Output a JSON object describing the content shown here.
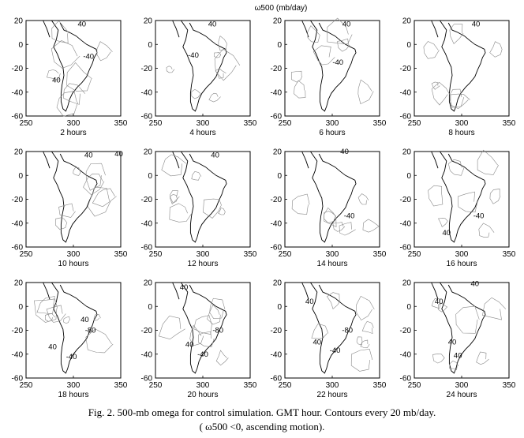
{
  "figure": {
    "title": "ω500 (mb/day)",
    "caption_line1": "Fig. 2. 500-mb omega for control simulation. GMT hour. Contours every 20 mb/day.",
    "caption_line2": "( ω500 <0, ascending motion)."
  },
  "chart_data": {
    "type": "contour",
    "variable": "ω500",
    "units": "mb/day",
    "contour_interval": 20,
    "x_ticks": [
      "250",
      "300",
      "350"
    ],
    "y_ticks": [
      "20",
      "0",
      "-20",
      "-40",
      "-60"
    ],
    "xlim": [
      250,
      350
    ],
    "ylim": [
      -60,
      20
    ],
    "panels": [
      {
        "hour": "2 hours",
        "labels": [
          {
            "text": "40",
            "x": 309,
            "y": 17
          },
          {
            "text": "-40",
            "x": 316,
            "y": -10
          },
          {
            "text": "40",
            "x": 282,
            "y": -30
          }
        ]
      },
      {
        "hour": "4 hours",
        "labels": [
          {
            "text": "40",
            "x": 310,
            "y": 17
          },
          {
            "text": "-40",
            "x": 290,
            "y": -9
          }
        ]
      },
      {
        "hour": "6 hours",
        "labels": [
          {
            "text": "40",
            "x": 315,
            "y": 17
          },
          {
            "text": "-40",
            "x": 306,
            "y": -15
          }
        ]
      },
      {
        "hour": "8 hours",
        "labels": [
          {
            "text": "40",
            "x": 315,
            "y": 17
          }
        ]
      },
      {
        "hour": "10 hours",
        "labels": [
          {
            "text": "40",
            "x": 316,
            "y": 17
          },
          {
            "text": "40",
            "x": 348,
            "y": 18
          }
        ]
      },
      {
        "hour": "12 hours",
        "labels": [
          {
            "text": "40",
            "x": 313,
            "y": 17
          }
        ]
      },
      {
        "hour": "14 hours",
        "labels": [
          {
            "text": "40",
            "x": 313,
            "y": 20
          },
          {
            "text": "-40",
            "x": 318,
            "y": -34
          }
        ]
      },
      {
        "hour": "16 hours",
        "labels": [
          {
            "text": "-40",
            "x": 318,
            "y": -34
          },
          {
            "text": "40",
            "x": 284,
            "y": -48
          }
        ]
      },
      {
        "hour": "18 hours",
        "labels": [
          {
            "text": "40",
            "x": 312,
            "y": -11
          },
          {
            "text": "-80",
            "x": 318,
            "y": -20
          },
          {
            "text": "40",
            "x": 278,
            "y": -34
          },
          {
            "text": "-40",
            "x": 298,
            "y": -42
          }
        ]
      },
      {
        "hour": "20 hours",
        "labels": [
          {
            "text": "40",
            "x": 280,
            "y": 16
          },
          {
            "text": "-80",
            "x": 316,
            "y": -20
          },
          {
            "text": "40",
            "x": 286,
            "y": -32
          },
          {
            "text": "-40",
            "x": 300,
            "y": -40
          }
        ]
      },
      {
        "hour": "22 hours",
        "labels": [
          {
            "text": "40",
            "x": 276,
            "y": 4
          },
          {
            "text": "-80",
            "x": 316,
            "y": -20
          },
          {
            "text": "40",
            "x": 284,
            "y": -30
          },
          {
            "text": "-40",
            "x": 303,
            "y": -37
          }
        ]
      },
      {
        "hour": "24 hours",
        "labels": [
          {
            "text": "40",
            "x": 314,
            "y": 19
          },
          {
            "text": "40",
            "x": 276,
            "y": 4
          },
          {
            "text": "40",
            "x": 290,
            "y": -30
          },
          {
            "text": "40",
            "x": 296,
            "y": -41
          }
        ]
      }
    ]
  }
}
